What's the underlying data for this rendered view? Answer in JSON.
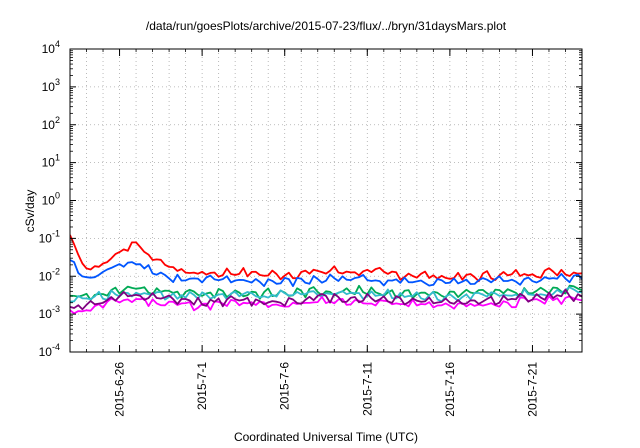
{
  "chart_data": {
    "type": "line",
    "title": "/data/run/goesPlots/archive/2015-07-23/flux/../bryn/31daysMars.plot",
    "xlabel": "Coordinated Universal Time (UTC)",
    "ylabel": "cSv/day",
    "y_scale": "log",
    "ylim": [
      0.0001,
      10000
    ],
    "xlim": [
      "2015-06-23",
      "2015-07-24"
    ],
    "grid": true,
    "legend": "none",
    "y_ticks": [
      {
        "value": 0.0001,
        "base": "10",
        "exp": "-4"
      },
      {
        "value": 0.001,
        "base": "10",
        "exp": "-3"
      },
      {
        "value": 0.01,
        "base": "10",
        "exp": "-2"
      },
      {
        "value": 0.1,
        "base": "10",
        "exp": "-1"
      },
      {
        "value": 1,
        "base": "10",
        "exp": "0"
      },
      {
        "value": 10,
        "base": "10",
        "exp": "1"
      },
      {
        "value": 100,
        "base": "10",
        "exp": "2"
      },
      {
        "value": 1000,
        "base": "10",
        "exp": "3"
      },
      {
        "value": 10000,
        "base": "10",
        "exp": "4"
      }
    ],
    "x_ticks": [
      {
        "date": "2015-06-26",
        "label": "2015-6-26"
      },
      {
        "date": "2015-07-01",
        "label": "2015-7-1"
      },
      {
        "date": "2015-07-06",
        "label": "2015-7-6"
      },
      {
        "date": "2015-07-11",
        "label": "2015-7-11"
      },
      {
        "date": "2015-07-16",
        "label": "2015-7-16"
      },
      {
        "date": "2015-07-21",
        "label": "2015-7-21"
      }
    ],
    "x": [
      "2015-06-23",
      "2015-06-24",
      "2015-06-25",
      "2015-06-26",
      "2015-06-27",
      "2015-06-28",
      "2015-06-29",
      "2015-06-30",
      "2015-07-01",
      "2015-07-02",
      "2015-07-03",
      "2015-07-04",
      "2015-07-05",
      "2015-07-06",
      "2015-07-07",
      "2015-07-08",
      "2015-07-09",
      "2015-07-10",
      "2015-07-11",
      "2015-07-12",
      "2015-07-13",
      "2015-07-14",
      "2015-07-15",
      "2015-07-16",
      "2015-07-17",
      "2015-07-18",
      "2015-07-19",
      "2015-07-20",
      "2015-07-21",
      "2015-07-22",
      "2015-07-23",
      "2015-07-24"
    ],
    "series": [
      {
        "color": "#ff0000",
        "values": [
          0.12,
          0.015,
          0.02,
          0.045,
          0.08,
          0.03,
          0.018,
          0.013,
          0.012,
          0.012,
          0.013,
          0.012,
          0.011,
          0.011,
          0.012,
          0.013,
          0.014,
          0.013,
          0.013,
          0.012,
          0.011,
          0.011,
          0.01,
          0.0095,
          0.0095,
          0.01,
          0.011,
          0.011,
          0.012,
          0.013,
          0.013,
          0.012
        ]
      },
      {
        "color": "#0055ff",
        "values": [
          0.025,
          0.008,
          0.012,
          0.022,
          0.025,
          0.014,
          0.009,
          0.008,
          0.0075,
          0.008,
          0.008,
          0.0075,
          0.007,
          0.007,
          0.0075,
          0.008,
          0.009,
          0.0085,
          0.0085,
          0.008,
          0.0075,
          0.007,
          0.0068,
          0.0065,
          0.0065,
          0.007,
          0.0072,
          0.0075,
          0.008,
          0.0085,
          0.009,
          0.0085
        ]
      },
      {
        "color": "#00aa55",
        "values": [
          0.003,
          0.003,
          0.0035,
          0.004,
          0.0045,
          0.004,
          0.0038,
          0.0035,
          0.0035,
          0.0036,
          0.0037,
          0.0036,
          0.0035,
          0.0036,
          0.0038,
          0.004,
          0.0042,
          0.004,
          0.004,
          0.0038,
          0.0037,
          0.0036,
          0.0035,
          0.0034,
          0.0035,
          0.0036,
          0.0037,
          0.0038,
          0.004,
          0.0042,
          0.0045,
          0.0043
        ]
      },
      {
        "color": "#33bbcc",
        "values": [
          0.0025,
          0.0025,
          0.003,
          0.0035,
          0.0038,
          0.0034,
          0.0032,
          0.003,
          0.003,
          0.0031,
          0.0032,
          0.0031,
          0.003,
          0.0031,
          0.0033,
          0.0035,
          0.0037,
          0.0035,
          0.0035,
          0.0033,
          0.0032,
          0.0031,
          0.003,
          0.0029,
          0.003,
          0.0031,
          0.0032,
          0.0033,
          0.0035,
          0.0037,
          0.004,
          0.0038
        ]
      },
      {
        "color": "#ff00ff",
        "values": [
          0.0012,
          0.0013,
          0.0018,
          0.0022,
          0.0025,
          0.0021,
          0.0019,
          0.0018,
          0.0017,
          0.0018,
          0.0019,
          0.0018,
          0.0017,
          0.0018,
          0.0019,
          0.0021,
          0.0023,
          0.0021,
          0.0021,
          0.002,
          0.0019,
          0.0018,
          0.0017,
          0.0016,
          0.0017,
          0.0018,
          0.0019,
          0.002,
          0.0022,
          0.0024,
          0.0026,
          0.0023
        ]
      },
      {
        "color": "#800080",
        "values": [
          0.0016,
          0.0017,
          0.0022,
          0.0027,
          0.003,
          0.0026,
          0.0024,
          0.0022,
          0.0021,
          0.0022,
          0.0023,
          0.0022,
          0.0021,
          0.0022,
          0.0024,
          0.0026,
          0.0028,
          0.0026,
          0.0026,
          0.0025,
          0.0024,
          0.0023,
          0.0022,
          0.0021,
          0.0022,
          0.0023,
          0.0024,
          0.0025,
          0.0027,
          0.0029,
          0.0032,
          0.0029
        ]
      }
    ]
  }
}
